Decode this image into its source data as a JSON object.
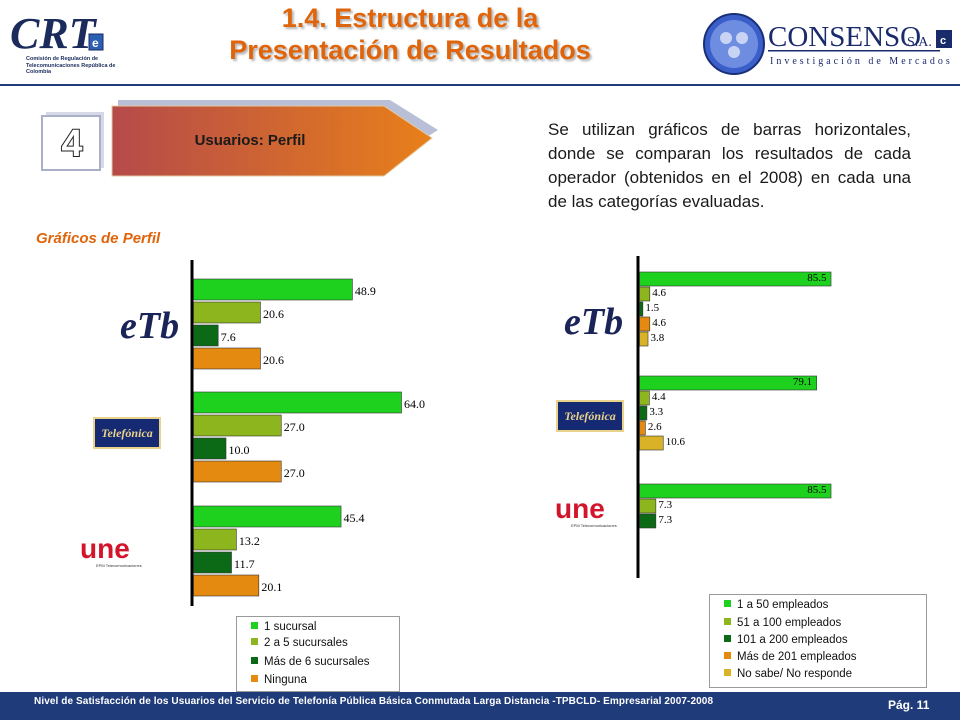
{
  "header": {
    "title_line1": "1.4. Estructura de la",
    "title_line2": "Presentación de Resultados",
    "crt_logo_text": "CRT",
    "crt_subtitle": "Comisión de Regulación de Telecomunicaciones República de Colombia",
    "consenso_name": "CONSENSO",
    "consenso_suffix": "S.A.",
    "consenso_tagline": "Investigación de Mercados"
  },
  "step": {
    "number": "4",
    "label": "Usuarios: Perfil"
  },
  "description": "Se utilizan gráficos de barras horizontales, donde se comparan los resultados de cada operador (obtenidos en el 2008) en cada una de las categorías evaluadas.",
  "section_title": "Gráficos de Perfil",
  "operators": {
    "etb": "eTb",
    "telefonica": "Telefónica",
    "une": "une",
    "une_sub": "EPM Telecomunicaciones"
  },
  "colors": {
    "green": "#1fd11f",
    "olive": "#8db51d",
    "darkgreen": "#0c6a16",
    "orange": "#e58a10",
    "gold": "#d9b227",
    "title_orange": "#e0640a",
    "navy": "#1f3b7a"
  },
  "chart_data": [
    {
      "type": "bar",
      "orientation": "horizontal",
      "categories": [
        "eTb",
        "Telefónica",
        "une"
      ],
      "series": [
        {
          "name": "1 sucursal",
          "color": "#1fd11f",
          "values": [
            48.9,
            64.0,
            45.4
          ]
        },
        {
          "name": "2 a 5 sucursales",
          "color": "#8db51d",
          "values": [
            20.6,
            27.0,
            13.2
          ]
        },
        {
          "name": "Más de 6 sucursales",
          "color": "#0c6a16",
          "values": [
            7.6,
            10.0,
            11.7
          ]
        },
        {
          "name": "Ninguna",
          "color": "#e58a10",
          "values": [
            20.6,
            27.0,
            20.1
          ]
        }
      ],
      "value_labels": [
        [
          "48.9",
          "20.6",
          "7.6",
          "20.6"
        ],
        [
          "64.0",
          "27.0",
          "10.0",
          "27.0"
        ],
        [
          "45.4",
          "13.2",
          "11.7",
          "20.1"
        ]
      ],
      "xlim": [
        0,
        100
      ],
      "legend_position": "bottom"
    },
    {
      "type": "bar",
      "orientation": "horizontal",
      "categories": [
        "eTb",
        "Telefónica",
        "une"
      ],
      "series": [
        {
          "name": "1 a 50 empleados",
          "color": "#1fd11f",
          "values": [
            85.5,
            79.1,
            85.5
          ]
        },
        {
          "name": "51 a 100 empleados",
          "color": "#8db51d",
          "values": [
            4.6,
            4.4,
            7.3
          ]
        },
        {
          "name": "101 a 200 empleados",
          "color": "#0c6a16",
          "values": [
            1.5,
            3.3,
            7.3
          ]
        },
        {
          "name": "Más de 201 empleados",
          "color": "#e58a10",
          "values": [
            4.6,
            2.6,
            null
          ]
        },
        {
          "name": "No sabe/ No responde",
          "color": "#d9b227",
          "values": [
            3.8,
            10.6,
            null
          ]
        }
      ],
      "value_labels": [
        [
          "85.5",
          "4.6",
          "1.5",
          "4.6",
          "3.8"
        ],
        [
          "79.1",
          "4.4",
          "3.3",
          "2.6",
          "10.6"
        ],
        [
          "85.5",
          "7.3",
          "7.3"
        ]
      ],
      "xlim": [
        0,
        100
      ],
      "legend_position": "bottom"
    }
  ],
  "footer": {
    "text": "Nivel de Satisfacción de los Usuarios del Servicio de Telefonía Pública Básica Conmutada Larga Distancia -TPBCLD- Empresarial 2007-2008",
    "page": "Pág. 11"
  }
}
